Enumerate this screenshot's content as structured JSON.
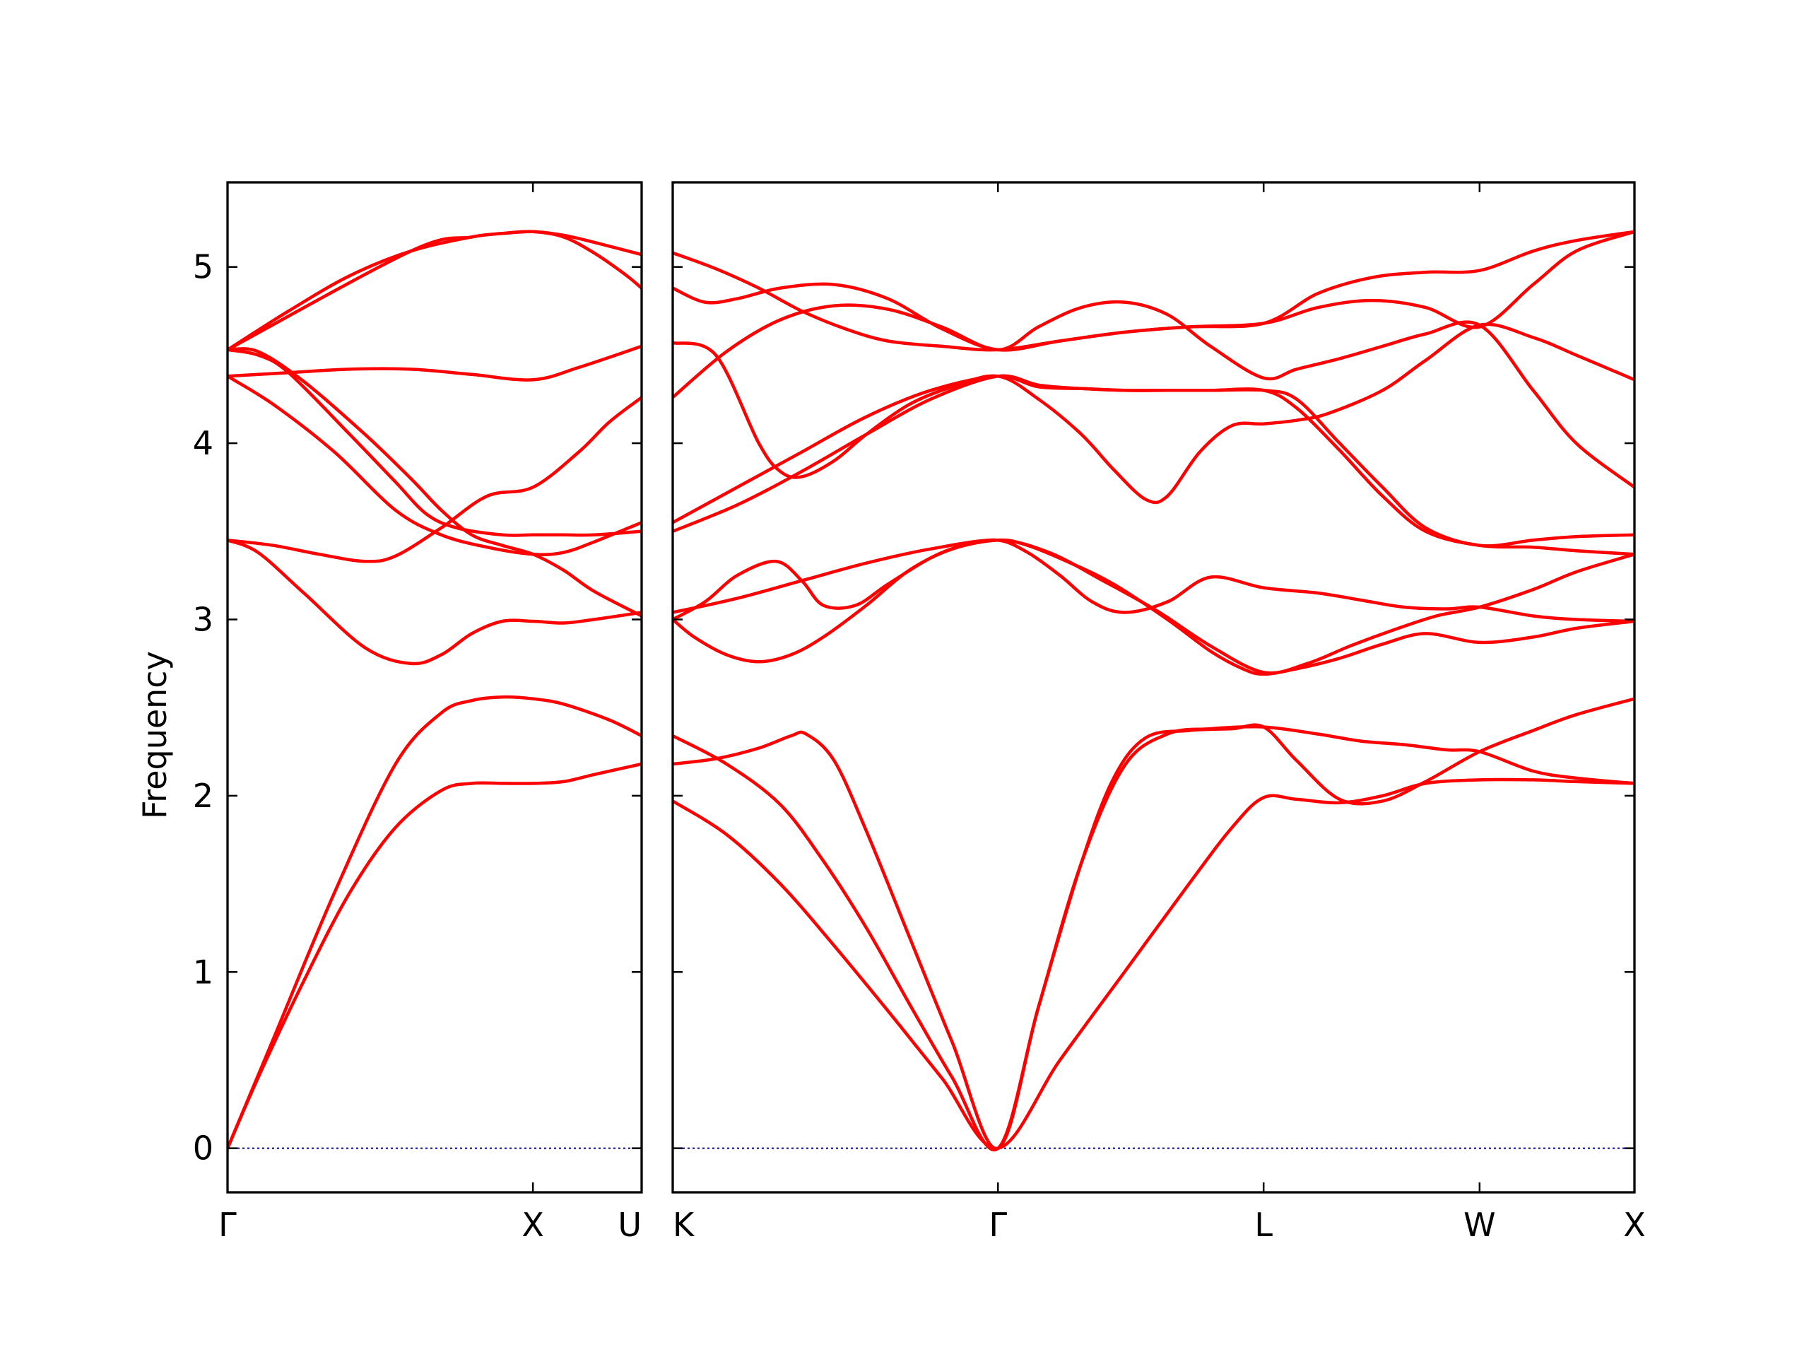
{
  "chart_data": {
    "type": "line",
    "title": "",
    "xlabel": "",
    "ylabel": "Frequency",
    "ylim": [
      -0.25,
      5.48
    ],
    "yticks": [
      "0",
      "1",
      "2",
      "3",
      "4",
      "5"
    ],
    "grid": false,
    "legend": "none",
    "band_color": "#ff0000",
    "zero_line_color": "#0000aa",
    "panels": [
      {
        "name": "Γ-X-U",
        "xlim": [
          0,
          1.356
        ],
        "zero_line": true,
        "ticks": [
          {
            "label": "Γ",
            "x": 0
          },
          {
            "label": "X",
            "x": 1.0
          },
          {
            "label": "U",
            "x": 1.356
          }
        ],
        "series": [
          {
            "x": [
              0,
              0.1,
              0.25,
              0.4,
              0.55,
              0.7,
              0.8,
              0.9,
              1.0,
              1.1,
              1.2,
              1.356
            ],
            "values": [
              0,
              0.4,
              0.95,
              1.45,
              1.82,
              2.03,
              2.07,
              2.07,
              2.07,
              2.08,
              2.12,
              2.18
            ]
          },
          {
            "x": [
              0,
              0.15,
              0.35,
              0.55,
              0.7,
              0.8,
              0.9,
              1.0,
              1.1,
              1.25,
              1.356
            ],
            "values": [
              0,
              0.62,
              1.45,
              2.18,
              2.47,
              2.54,
              2.56,
              2.55,
              2.52,
              2.43,
              2.34
            ]
          },
          {
            "x": [
              0,
              1.0,
              1.356
            ],
            "values": [
              0,
              0,
              0
            ]
          },
          {
            "x": [
              0,
              0.1,
              0.25,
              0.45,
              0.6,
              0.7,
              0.8,
              0.9,
              1.0,
              1.1,
              1.2,
              1.356
            ],
            "values": [
              3.45,
              3.38,
              3.15,
              2.84,
              2.75,
              2.8,
              2.92,
              2.99,
              2.99,
              2.98,
              3.0,
              3.04
            ]
          },
          {
            "x": [
              0,
              0.15,
              0.3,
              0.45,
              0.55,
              0.7,
              0.85,
              1.0,
              1.15,
              1.25,
              1.356
            ],
            "values": [
              3.45,
              3.42,
              3.37,
              3.33,
              3.36,
              3.52,
              3.7,
              3.75,
              3.95,
              4.12,
              4.26
            ]
          },
          {
            "x": [
              0,
              0.1,
              0.2,
              0.4,
              0.55,
              0.65,
              0.75,
              0.9,
              1.0,
              1.1,
              1.2,
              1.356
            ],
            "values": [
              4.53,
              4.5,
              4.4,
              4.05,
              3.78,
              3.6,
              3.52,
              3.48,
              3.48,
              3.48,
              3.48,
              3.5
            ]
          },
          {
            "x": [
              0,
              0.15,
              0.35,
              0.55,
              0.7,
              0.85,
              1.0,
              1.1,
              1.2,
              1.356
            ],
            "values": [
              4.38,
              4.22,
              3.95,
              3.62,
              3.48,
              3.41,
              3.37,
              3.38,
              3.44,
              3.55
            ]
          },
          {
            "x": [
              0,
              0.1,
              0.25,
              0.45,
              0.6,
              0.7,
              0.8,
              0.9,
              1.0,
              1.1,
              1.2,
              1.356
            ],
            "values": [
              4.53,
              4.52,
              4.35,
              4.05,
              3.8,
              3.62,
              3.48,
              3.42,
              3.37,
              3.28,
              3.16,
              3.02
            ]
          },
          {
            "x": [
              0,
              0.2,
              0.4,
              0.6,
              0.8,
              1.0,
              1.15,
              1.356
            ],
            "values": [
              4.38,
              4.4,
              4.42,
              4.42,
              4.39,
              4.36,
              4.43,
              4.55
            ]
          },
          {
            "x": [
              0,
              0.2,
              0.4,
              0.6,
              0.8,
              0.9,
              1.0,
              1.1,
              1.2,
              1.356
            ],
            "values": [
              4.53,
              4.75,
              4.95,
              5.09,
              5.17,
              5.19,
              5.2,
              5.18,
              5.14,
              5.07
            ]
          },
          {
            "x": [
              0,
              0.6,
              0.8,
              0.9,
              1.0,
              1.1,
              1.2,
              1.3,
              1.356
            ],
            "values": [
              4.53,
              5.09,
              5.17,
              5.19,
              5.2,
              5.17,
              5.08,
              4.96,
              4.88
            ]
          }
        ]
      },
      {
        "name": "K-Γ-L-W-X",
        "xlim": [
          0,
          4.471
        ],
        "zero_line": true,
        "ticks": [
          {
            "label": "K",
            "x": 0
          },
          {
            "label": "Γ",
            "x": 1.512
          },
          {
            "label": "L",
            "x": 2.747
          },
          {
            "label": "W",
            "x": 3.751
          },
          {
            "label": "X",
            "x": 4.471
          }
        ],
        "series": [
          {
            "x": [
              0,
              0.25,
              0.5,
              0.75,
              1.0,
              1.25,
              1.512,
              1.8,
              2.1,
              2.4,
              2.6,
              2.747,
              2.9,
              3.1,
              3.3,
              3.5,
              3.751,
              4.0,
              4.2,
              4.471
            ],
            "values": [
              1.97,
              1.78,
              1.5,
              1.15,
              0.78,
              0.4,
              0,
              0.5,
              1.0,
              1.5,
              1.82,
              1.99,
              1.98,
              1.96,
              2.0,
              2.07,
              2.09,
              2.09,
              2.08,
              2.07
            ]
          },
          {
            "x": [
              0,
              0.25,
              0.5,
              0.7,
              0.9,
              1.1,
              1.3,
              1.512,
              1.7,
              1.9,
              2.1,
              2.3,
              2.5,
              2.747,
              3.0,
              3.2,
              3.4,
              3.6,
              3.751,
              4.0,
              4.2,
              4.471
            ],
            "values": [
              2.34,
              2.18,
              1.95,
              1.63,
              1.25,
              0.82,
              0.4,
              0,
              0.8,
              1.62,
              2.17,
              2.35,
              2.38,
              2.39,
              2.35,
              2.31,
              2.29,
              2.26,
              2.25,
              2.14,
              2.1,
              2.07
            ]
          },
          {
            "x": [
              0,
              0.2,
              0.4,
              0.55,
              0.62,
              0.75,
              0.9,
              1.1,
              1.3,
              1.512,
              1.7,
              1.9,
              2.05,
              2.2,
              2.4,
              2.6,
              2.747,
              2.9,
              3.1,
              3.3,
              3.5,
              3.751,
              4.0,
              4.2,
              4.471
            ],
            "values": [
              2.18,
              2.21,
              2.27,
              2.34,
              2.35,
              2.2,
              1.8,
              1.2,
              0.6,
              0,
              0.8,
              1.62,
              2.1,
              2.33,
              2.37,
              2.38,
              2.39,
              2.2,
              1.98,
              1.97,
              2.08,
              2.25,
              2.37,
              2.46,
              2.55
            ]
          },
          {
            "x": [
              0,
              0.1,
              0.25,
              0.4,
              0.55,
              0.7,
              0.9,
              1.1,
              1.3,
              1.512,
              1.65,
              1.85,
              2.05,
              2.3,
              2.5,
              2.65,
              2.747,
              2.9,
              3.1,
              3.3,
              3.5,
              3.751,
              4.0,
              4.2,
              4.471
            ],
            "values": [
              3.0,
              2.9,
              2.8,
              2.76,
              2.8,
              2.9,
              3.08,
              3.28,
              3.4,
              3.45,
              3.42,
              3.32,
              3.2,
              3.0,
              2.82,
              2.72,
              2.69,
              2.72,
              2.78,
              2.86,
              2.92,
              2.87,
              2.9,
              2.95,
              2.99
            ]
          },
          {
            "x": [
              0,
              0.15,
              0.3,
              0.48,
              0.6,
              0.7,
              0.85,
              1.0,
              1.2,
              1.35,
              1.512,
              1.65,
              1.8,
              1.95,
              2.1,
              2.3,
              2.5,
              2.747,
              3.0,
              3.2,
              3.4,
              3.6,
              3.751,
              4.0,
              4.2,
              4.471
            ],
            "values": [
              3.0,
              3.1,
              3.25,
              3.33,
              3.22,
              3.08,
              3.08,
              3.2,
              3.35,
              3.42,
              3.45,
              3.38,
              3.25,
              3.1,
              3.04,
              3.1,
              3.24,
              3.18,
              3.15,
              3.11,
              3.07,
              3.06,
              3.07,
              3.02,
              3.0,
              2.99
            ]
          },
          {
            "x": [
              0,
              0.3,
              0.6,
              0.9,
              1.2,
              1.512,
              1.75,
              2.0,
              2.25,
              2.5,
              2.747,
              2.95,
              3.15,
              3.35,
              3.55,
              3.751,
              4.0,
              4.2,
              4.471
            ],
            "values": [
              3.04,
              3.12,
              3.22,
              3.32,
              3.4,
              3.45,
              3.38,
              3.22,
              3.05,
              2.85,
              2.7,
              2.75,
              2.85,
              2.94,
              3.02,
              3.07,
              3.17,
              3.27,
              3.37
            ]
          },
          {
            "x": [
              0,
              0.3,
              0.6,
              0.9,
              1.2,
              1.512,
              1.7,
              1.9,
              2.1,
              2.3,
              2.5,
              2.747,
              2.9,
              3.1,
              3.3,
              3.5,
              3.751,
              4.0,
              4.2,
              4.471
            ],
            "values": [
              3.5,
              3.65,
              3.84,
              4.05,
              4.25,
              4.38,
              4.33,
              4.31,
              4.3,
              4.3,
              4.3,
              4.3,
              4.2,
              3.96,
              3.7,
              3.5,
              3.42,
              3.41,
              3.39,
              3.37
            ]
          },
          {
            "x": [
              0,
              0.3,
              0.6,
              0.9,
              1.2,
              1.512,
              1.7,
              1.9,
              2.1,
              2.3,
              2.5,
              2.747,
              2.9,
              3.1,
              3.3,
              3.5,
              3.751,
              4.0,
              4.2,
              4.471
            ],
            "values": [
              3.55,
              3.75,
              3.95,
              4.15,
              4.3,
              4.38,
              4.32,
              4.31,
              4.3,
              4.3,
              4.3,
              4.3,
              4.25,
              4.0,
              3.75,
              3.52,
              3.42,
              3.45,
              3.47,
              3.48
            ]
          },
          {
            "x": [
              0,
              0.2,
              0.4,
              0.5,
              0.6,
              0.75,
              0.9,
              1.1,
              1.3,
              1.512,
              1.7,
              1.9,
              2.05,
              2.2,
              2.3,
              2.45,
              2.6,
              2.747,
              2.9,
              3.05,
              3.3,
              3.5,
              3.751,
              4.0,
              4.2,
              4.471
            ],
            "values": [
              4.57,
              4.5,
              4.0,
              3.84,
              3.81,
              3.9,
              4.05,
              4.22,
              4.32,
              4.38,
              4.25,
              4.05,
              3.85,
              3.68,
              3.7,
              3.95,
              4.1,
              4.11,
              4.13,
              4.17,
              4.3,
              4.47,
              4.67,
              4.6,
              4.5,
              4.36
            ]
          },
          {
            "x": [
              0,
              0.25,
              0.5,
              0.75,
              1.0,
              1.25,
              1.512,
              1.7,
              1.9,
              2.1,
              2.3,
              2.5,
              2.747,
              2.9,
              3.1,
              3.3,
              3.5,
              3.751,
              4.0,
              4.2,
              4.471
            ],
            "values": [
              4.26,
              4.52,
              4.7,
              4.78,
              4.76,
              4.66,
              4.53,
              4.66,
              4.77,
              4.8,
              4.73,
              4.55,
              4.37,
              4.42,
              4.48,
              4.55,
              4.62,
              4.67,
              4.3,
              4.0,
              3.75
            ]
          },
          {
            "x": [
              0,
              0.15,
              0.3,
              0.5,
              0.75,
              1.0,
              1.25,
              1.512,
              1.8,
              2.1,
              2.4,
              2.747,
              3.0,
              3.25,
              3.5,
              3.751,
              4.0,
              4.2,
              4.471
            ],
            "values": [
              4.88,
              4.8,
              4.82,
              4.88,
              4.9,
              4.82,
              4.65,
              4.53,
              4.58,
              4.63,
              4.66,
              4.68,
              4.77,
              4.81,
              4.77,
              4.66,
              4.9,
              5.09,
              5.2
            ]
          },
          {
            "x": [
              0,
              0.2,
              0.4,
              0.6,
              0.8,
              1.0,
              1.25,
              1.512,
              1.8,
              2.1,
              2.4,
              2.747,
              3.0,
              3.25,
              3.5,
              3.751,
              4.0,
              4.2,
              4.471
            ],
            "values": [
              5.08,
              4.99,
              4.88,
              4.75,
              4.65,
              4.58,
              4.55,
              4.53,
              4.58,
              4.63,
              4.66,
              4.68,
              4.85,
              4.94,
              4.97,
              4.98,
              5.09,
              5.15,
              5.2
            ]
          },
          {
            "x": [
              0,
              4.471
            ],
            "values": [
              0,
              0
            ]
          }
        ]
      }
    ]
  }
}
